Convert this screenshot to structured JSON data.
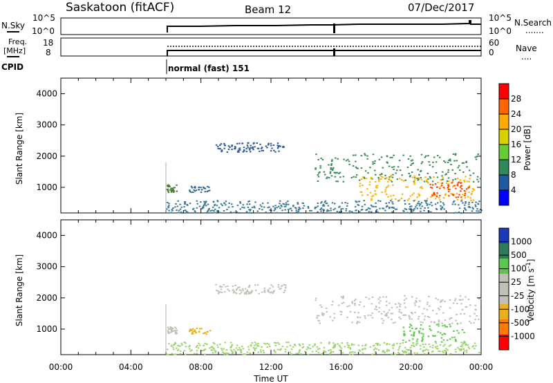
{
  "header": {
    "title": "Saskatoon (fitACF)",
    "beam": "Beam 12",
    "date": "07/Dec/2017"
  },
  "sky_panel": {
    "left_label": "N.Sky",
    "left_ticks": [
      "10^5",
      "10^0"
    ],
    "right_ticks": [
      "10^5",
      "10^0"
    ],
    "right_label": "N.Search",
    "right_label_suffix": "......."
  },
  "freq_panel": {
    "left_label_1": "Freq.",
    "left_label_2": "[MHz]",
    "left_ticks": [
      "18",
      "8"
    ],
    "right_ticks": [
      "60",
      "0"
    ],
    "right_label": "Nave",
    "right_label_suffix": "...."
  },
  "cpid": {
    "label": "CPID",
    "mode": "normal (fast) 151"
  },
  "chart_data": [
    {
      "type": "heatmap",
      "panel": "power",
      "ylabel": "Slant Range [km]",
      "yticks": [
        "4000",
        "3000",
        "2000",
        "1000"
      ],
      "ylim": [
        180,
        4500
      ],
      "xlim": [
        0,
        24
      ],
      "colorbar": {
        "label": "Power [dB]",
        "ticks": [
          "28",
          "24",
          "20",
          "16",
          "12",
          "8",
          "4"
        ],
        "colors": [
          "#ff0000",
          "#ff6600",
          "#ffaa00",
          "#d6d200",
          "#66cc33",
          "#2e8b57",
          "#1e5aa0",
          "#0000ff"
        ]
      },
      "regions": [
        {
          "t0": 6.0,
          "t1": 6.6,
          "r0": 850,
          "r1": 1100,
          "color": "#4a7a3a"
        },
        {
          "t0": 7.3,
          "t1": 8.5,
          "r0": 860,
          "r1": 1050,
          "color": "#2e6a9a"
        },
        {
          "t0": 8.8,
          "t1": 12.8,
          "r0": 2150,
          "r1": 2450,
          "color": "#2e5aa0"
        },
        {
          "t0": 14.5,
          "t1": 24.0,
          "r0": 1200,
          "r1": 2100,
          "color": "#3a8a5a"
        },
        {
          "t0": 17.0,
          "t1": 23.6,
          "r0": 600,
          "r1": 1400,
          "color": "#ffb000"
        },
        {
          "t0": 21.0,
          "t1": 23.3,
          "r0": 700,
          "r1": 1200,
          "color": "#ff4000"
        },
        {
          "t0": 6.0,
          "t1": 24.0,
          "r0": 200,
          "r1": 600,
          "color": "#3a7a9a"
        }
      ]
    },
    {
      "type": "heatmap",
      "panel": "velocity",
      "ylabel": "Slant Range [km]",
      "yticks": [
        "4000",
        "3000",
        "2000",
        "1000"
      ],
      "ylim": [
        180,
        4500
      ],
      "xlabel": "Time UT",
      "xticks": [
        "00:00",
        "04:00",
        "08:00",
        "12:00",
        "16:00",
        "20:00",
        "00:00"
      ],
      "xlim": [
        0,
        24
      ],
      "colorbar": {
        "label": "Velocity [m s",
        "label_sup": "-1",
        "label_end": "]",
        "ticks": [
          "1000",
          "500",
          "100",
          "25",
          "-25",
          "-100",
          "-500",
          "-1000"
        ],
        "colors": [
          "#1a3ab8",
          "#2e7a5a",
          "#5ac84a",
          "#c0c0b8",
          "#c0c0b8",
          "#e8b020",
          "#ff7a00",
          "#ff0000"
        ]
      },
      "regions": [
        {
          "t0": 6.0,
          "t1": 6.6,
          "r0": 850,
          "r1": 1100,
          "color": "#c0c0b8"
        },
        {
          "t0": 7.3,
          "t1": 8.5,
          "r0": 860,
          "r1": 1050,
          "color": "#e8b020"
        },
        {
          "t0": 8.8,
          "t1": 12.8,
          "r0": 2150,
          "r1": 2450,
          "color": "#c0c0b8"
        },
        {
          "t0": 14.5,
          "t1": 24.0,
          "r0": 1200,
          "r1": 2100,
          "color": "#c0c0b8"
        },
        {
          "t0": 19.5,
          "t1": 23.0,
          "r0": 600,
          "r1": 1200,
          "color": "#5ac84a"
        },
        {
          "t0": 6.0,
          "t1": 24.0,
          "r0": 200,
          "r1": 600,
          "color": "#9ad46a"
        }
      ]
    }
  ]
}
